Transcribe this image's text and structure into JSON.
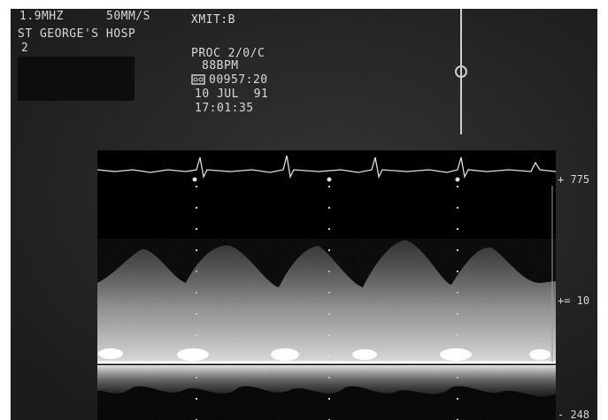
{
  "header": {
    "frequency": "1.9MHZ",
    "sweep": "50MM/S",
    "transmit": "XMIT:B",
    "hospital": "ST GEORGE'S HOSP",
    "channel": "2",
    "proc": "PROC 2/0/C",
    "bpm": "88BPM",
    "frame_counter": "00957:20",
    "date": "10 JUL  91",
    "time": "17:01:35"
  },
  "scale": {
    "top": "+ 775",
    "middle": "+= 10",
    "bottom": "- 248"
  },
  "colors": {
    "background": "#2b2b2b",
    "text": "#d9d9d9",
    "doppler_bg": "#000000",
    "signal": "#e6e6e6"
  },
  "icons": {
    "record_indicator": "tape-icon"
  }
}
